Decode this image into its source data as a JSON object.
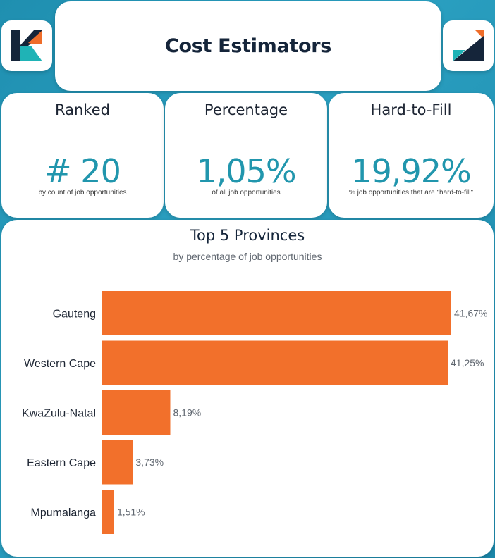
{
  "header": {
    "title": "Cost Estimators"
  },
  "logos": {
    "left": "brand-logo-left",
    "right": "brand-logo-right"
  },
  "kpis": [
    {
      "label": "Ranked",
      "value": "# 20",
      "sub": "by count of job opportunities"
    },
    {
      "label": "Percentage",
      "value": "1,05%",
      "sub": "of all job opportunities"
    },
    {
      "label": "Hard-to-Fill",
      "value": "19,92%",
      "sub": "% job opportunities that are \"hard-to-fill\""
    }
  ],
  "colors": {
    "accent": "#2196ad",
    "bar": "#f2702b",
    "title": "#15253a",
    "background": "#1f8fb0"
  },
  "chart_data": {
    "type": "bar",
    "orientation": "horizontal",
    "title": "Top 5 Provinces",
    "subtitle": "by percentage of job opportunities",
    "categories": [
      "Gauteng",
      "Western Cape",
      "KwaZulu-Natal",
      "Eastern Cape",
      "Mpumalanga"
    ],
    "values": [
      41.67,
      41.25,
      8.19,
      3.73,
      1.51
    ],
    "value_labels": [
      "41,67%",
      "41,25%",
      "8,19%",
      "3,73%",
      "1,51%"
    ],
    "xlim": [
      0,
      41.67
    ],
    "grid": false,
    "legend": "none"
  }
}
